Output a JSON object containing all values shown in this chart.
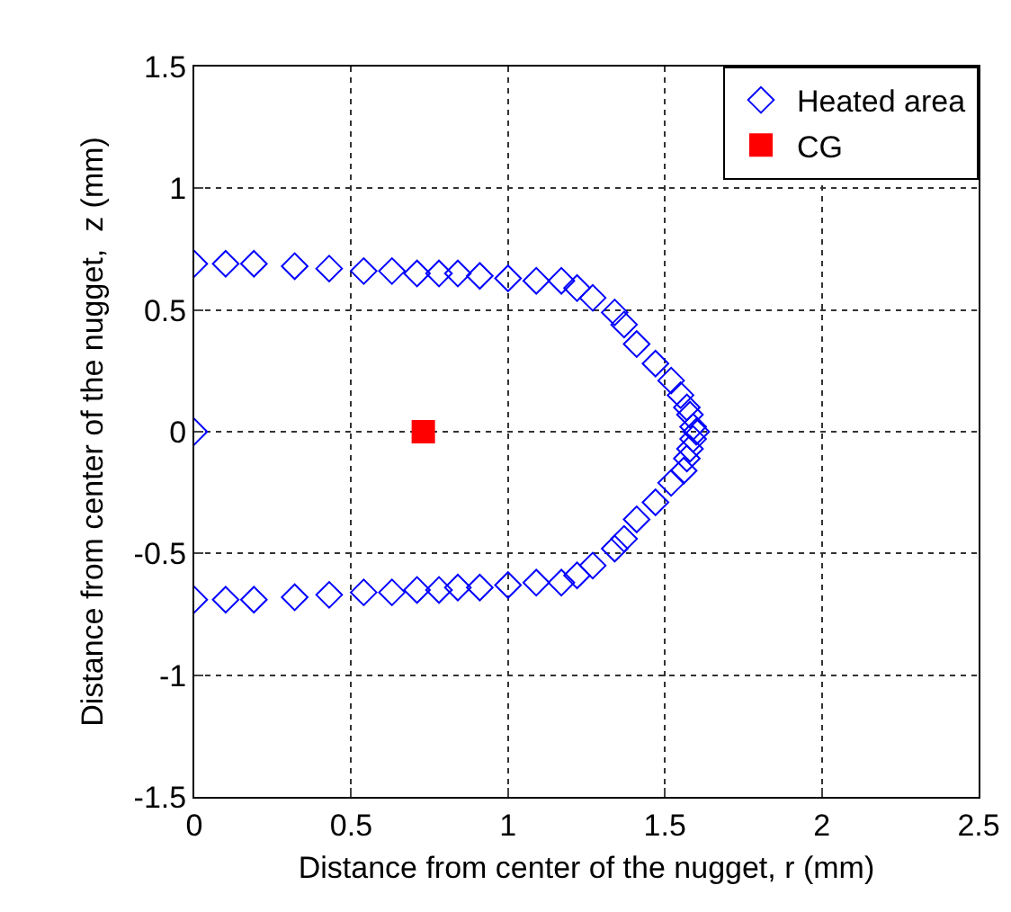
{
  "chart_data": {
    "type": "scatter",
    "xlabel": "Distance from center of the nugget, r (mm)",
    "ylabel": "Distance from center of the nugget,  z (mm)",
    "xlim": [
      0,
      2.5
    ],
    "ylim": [
      -1.5,
      1.5
    ],
    "xticks": [
      0,
      0.5,
      1,
      1.5,
      2,
      2.5
    ],
    "yticks": [
      -1.5,
      -1,
      -0.5,
      0,
      0.5,
      1,
      1.5
    ],
    "grid": true,
    "legend": "top right",
    "series": [
      {
        "name": "Heated area",
        "color": "#0000ff",
        "marker": "diamond",
        "x": [
          0,
          0.1,
          0.19,
          0.32,
          0.43,
          0.54,
          0.63,
          0.71,
          0.78,
          0.84,
          0.91,
          1.0,
          1.09,
          1.17,
          1.22,
          1.27,
          1.34,
          1.37,
          1.41,
          1.47,
          1.52,
          1.55,
          1.57,
          1.58,
          1.59,
          1.6,
          1.59,
          1.58,
          1.57,
          1.56,
          1.52,
          1.47,
          1.41,
          1.37,
          1.34,
          1.27,
          1.22,
          1.17,
          1.09,
          1.0,
          0.91,
          0.84,
          0.78,
          0.71,
          0.63,
          0.54,
          0.43,
          0.32,
          0.19,
          0.1,
          0,
          0
        ],
        "values": [
          0.69,
          0.69,
          0.69,
          0.68,
          0.67,
          0.66,
          0.66,
          0.65,
          0.65,
          0.65,
          0.64,
          0.63,
          0.62,
          0.62,
          0.59,
          0.55,
          0.49,
          0.44,
          0.36,
          0.28,
          0.21,
          0.15,
          0.1,
          0.07,
          0.02,
          0.0,
          -0.03,
          -0.07,
          -0.11,
          -0.16,
          -0.21,
          -0.29,
          -0.36,
          -0.44,
          -0.48,
          -0.55,
          -0.59,
          -0.62,
          -0.62,
          -0.63,
          -0.64,
          -0.64,
          -0.65,
          -0.65,
          -0.66,
          -0.66,
          -0.67,
          -0.68,
          -0.69,
          -0.69,
          -0.69,
          0
        ]
      },
      {
        "name": "CG",
        "color": "#ff0000",
        "marker": "square",
        "x": [
          0.73
        ],
        "values": [
          0
        ]
      }
    ]
  }
}
